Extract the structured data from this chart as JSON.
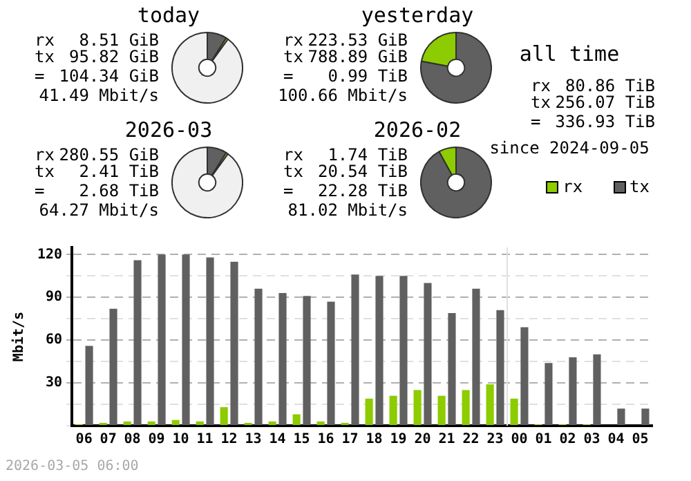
{
  "chart_data": [
    {
      "type": "donut",
      "title": "today",
      "categories": [
        null,
        null,
        null
      ],
      "values": [
        9,
        1,
        90
      ],
      "colors": [
        "#606060",
        "#8ccc00",
        "#f0f0f0"
      ],
      "annotations": [
        "rx",
        "8.51 GiB",
        "tx",
        "95.82 GiB",
        "=",
        "104.34 GiB",
        "41.49 Mbit/s"
      ]
    },
    {
      "type": "donut",
      "title": "yesterday",
      "categories": [
        null,
        null
      ],
      "values": [
        78,
        22
      ],
      "colors": [
        "#606060",
        "#8ccc00"
      ],
      "annotations": [
        "rx",
        "223.53 GiB",
        "tx",
        "788.89 GiB",
        "=",
        "0.99 TiB",
        "100.66 Mbit/s"
      ]
    },
    {
      "type": "other",
      "title": "all time",
      "annotations": [
        "rx",
        "80.86 TiB",
        "tx",
        "256.07 TiB",
        "=",
        "336.93 TiB",
        "since 2024-09-05"
      ]
    },
    {
      "type": "donut",
      "title": "2026-03",
      "categories": [
        null,
        null,
        null
      ],
      "values": [
        9,
        1,
        90
      ],
      "colors": [
        "#606060",
        "#8ccc00",
        "#f0f0f0"
      ],
      "annotations": [
        "rx",
        "280.55 GiB",
        "tx",
        "2.41 TiB",
        "=",
        "2.68 TiB",
        "64.27 Mbit/s"
      ]
    },
    {
      "type": "donut",
      "title": "2026-02",
      "categories": [
        null,
        null
      ],
      "values": [
        92,
        8
      ],
      "colors": [
        "#606060",
        "#8ccc00"
      ],
      "annotations": [
        "rx",
        "1.74 TiB",
        "tx",
        "20.54 TiB",
        "=",
        "22.28 TiB",
        "81.02 Mbit/s"
      ]
    },
    {
      "type": "bar",
      "ylabel": "Mbit/s",
      "categories": [
        "06",
        "07",
        "08",
        "09",
        "10",
        "11",
        "12",
        "13",
        "14",
        "15",
        "16",
        "17",
        "18",
        "19",
        "20",
        "21",
        "22",
        "23",
        "00",
        "01",
        "02",
        "03",
        "04",
        "05"
      ],
      "series": [
        {
          "name": "rx",
          "color": "#8ccc00",
          "values": [
            1,
            2,
            3,
            3,
            4,
            3,
            13,
            2,
            3,
            8,
            3,
            2,
            19,
            21,
            25,
            21,
            25,
            29,
            19,
            1,
            1,
            1,
            0,
            0
          ]
        },
        {
          "name": "tx",
          "color": "#606060",
          "values": [
            56,
            82,
            116,
            120,
            120,
            118,
            115,
            96,
            93,
            91,
            87,
            106,
            105,
            105,
            100,
            79,
            96,
            81,
            69,
            44,
            48,
            50,
            12,
            12
          ]
        }
      ],
      "ylim": [
        0,
        125
      ],
      "yticks": [
        {
          "value": 0,
          "label": null
        },
        {
          "value": 15,
          "label": null
        },
        30,
        {
          "value": 45,
          "label": null
        },
        60,
        {
          "value": 75,
          "label": null
        },
        90,
        {
          "value": 105,
          "label": null
        },
        120
      ],
      "grid": "y",
      "legend": "top right",
      "ref_lines": [
        {
          "axis": "x",
          "value": "00",
          "color": "#e0e0e0"
        }
      ],
      "annotations": [
        "2026-03-05 06:00"
      ]
    }
  ]
}
